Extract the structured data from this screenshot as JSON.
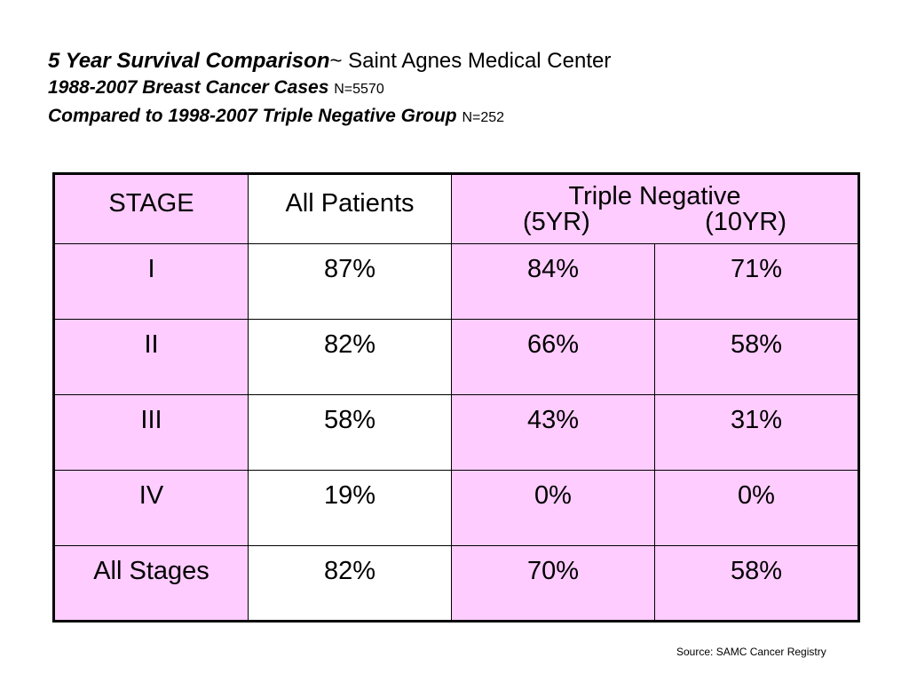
{
  "title": {
    "line1_bold": "5 Year Survival Comparison",
    "line1_rest": "~ Saint Agnes Medical Center",
    "line2_bold": "1988-2007 Breast Cancer Cases",
    "line2_small": "N=5570",
    "line3_bold": "Compared to 1998-2007 Triple Negative Group",
    "line3_small": "N=252"
  },
  "table": {
    "headers": {
      "stage": "STAGE",
      "all_patients": "All Patients",
      "triple_negative": "Triple Negative",
      "yr5": "(5YR)",
      "yr10": "(10YR)"
    },
    "rows": [
      {
        "stage": "I",
        "all": "87%",
        "tn5": "84%",
        "tn10": "71%"
      },
      {
        "stage": "II",
        "all": "82%",
        "tn5": "66%",
        "tn10": "58%"
      },
      {
        "stage": "III",
        "all": "58%",
        "tn5": "43%",
        "tn10": "31%"
      },
      {
        "stage": "IV",
        "all": "19%",
        "tn5": "0%",
        "tn10": "0%"
      },
      {
        "stage": "All Stages",
        "all": "82%",
        "tn5": "70%",
        "tn10": "58%"
      }
    ]
  },
  "source": "Source: SAMC Cancer Registry",
  "colors": {
    "pink_cell": "#ffccff",
    "white_cell": "#ffffff",
    "border": "#000000"
  }
}
